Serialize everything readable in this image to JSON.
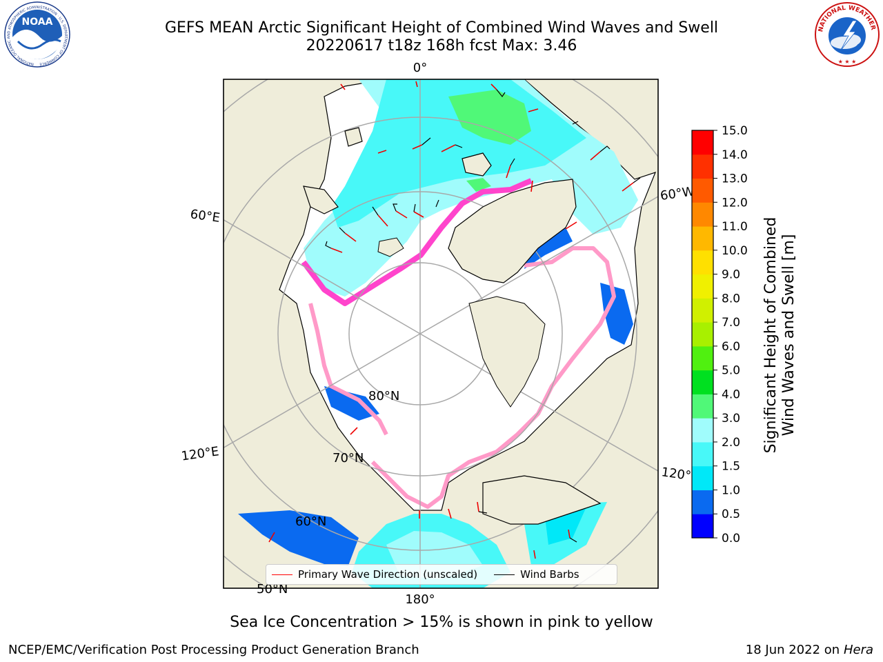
{
  "header": {
    "title_line1": "GEFS MEAN Arctic Significant Height of Combined Wind Waves and Swell",
    "title_line2": "20220617 t18z 168h fcst   Max: 3.46"
  },
  "logos": {
    "noaa": {
      "text": "NOAA",
      "ring_text": "NATIONAL OCEANIC AND ATMOSPHERIC ADMINISTRATION · U.S. DEPARTMENT OF COMMERCE"
    },
    "nws": {
      "ring_text": "NATIONAL WEATHER SERVICE"
    }
  },
  "map": {
    "projection": "north-polar-stereographic",
    "longitude_labels": [
      "0°",
      "60°W",
      "120°W",
      "180°",
      "120°E",
      "60°E"
    ],
    "latitude_labels": [
      "80°N",
      "70°N",
      "60°N",
      "50°N"
    ],
    "colors": {
      "land": "#efedda",
      "ice_free_ocean": "#ffffff",
      "grid": "#a8a8a8",
      "coast": "#000000",
      "wave_arrow": "#ee0000",
      "wind_barb": "#000000",
      "sea_ice": "#ff44cc"
    },
    "legend": {
      "items": [
        {
          "label": "Primary Wave Direction (unscaled)",
          "color": "#ff0000"
        },
        {
          "label": "Wind Barbs",
          "color": "#000000"
        }
      ]
    }
  },
  "colorbar": {
    "label_line1": "Significant Height of Combined",
    "label_line2": "Wind Waves and Swell [m]",
    "ticks": [
      "0.0",
      "0.5",
      "1.0",
      "1.5",
      "2.0",
      "3.0",
      "4.0",
      "5.0",
      "6.0",
      "7.0",
      "8.0",
      "9.0",
      "10.0",
      "11.0",
      "12.0",
      "13.0",
      "14.0",
      "15.0"
    ],
    "colors": [
      "#0000ff",
      "#0a6af0",
      "#00e8f8",
      "#48f8f8",
      "#a0fcfc",
      "#50f878",
      "#00e020",
      "#50f010",
      "#a8f000",
      "#d0f000",
      "#f0f000",
      "#ffe000",
      "#ffb800",
      "#ff8800",
      "#ff5a00",
      "#ff3000",
      "#ff0000"
    ]
  },
  "caption": "Sea Ice Concentration > 15% is shown in pink to yellow",
  "footer": {
    "left": "NCEP/EMC/Verification Post Processing Product Generation Branch",
    "right_date": "18 Jun 2022 on",
    "right_host": "Hera"
  }
}
